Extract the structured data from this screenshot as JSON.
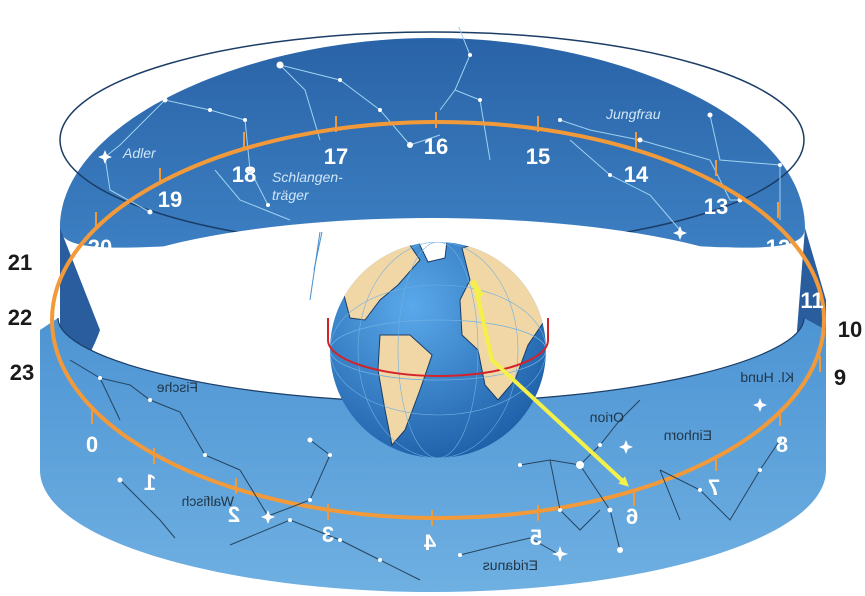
{
  "ring_numbers_back": [
    "17",
    "16",
    "15",
    "14",
    "13",
    "12",
    "18",
    "19",
    "20"
  ],
  "ring_numbers_outside_left": [
    "21",
    "22",
    "23"
  ],
  "ring_numbers_outside_right": [
    "11",
    "10",
    "9"
  ],
  "ring_numbers_front": [
    "0",
    "1",
    "2",
    "3",
    "4",
    "5",
    "6",
    "7",
    "8"
  ],
  "constellations_back": {
    "adler": "Adler",
    "schlangentraeger_1": "Schlangen-",
    "schlangentraeger_2": "träger",
    "jungfrau": "Jungfrau"
  },
  "constellations_front_mirrored": {
    "fische": "Fische",
    "walfisch": "Walfisch",
    "eridanus": "Eridanus",
    "orion": "Orion",
    "einhorn": "Einhorn",
    "kl_hund": "Kl. Hund"
  },
  "colors": {
    "band_back": "#2f6fb4",
    "band_front": "#5b9fd7",
    "ecliptic_ring": "#f29a3a",
    "arrow": "#f4f04a",
    "equator": "#d2232a",
    "ocean": "#2c7fd0",
    "land": "#f2d7a6"
  }
}
